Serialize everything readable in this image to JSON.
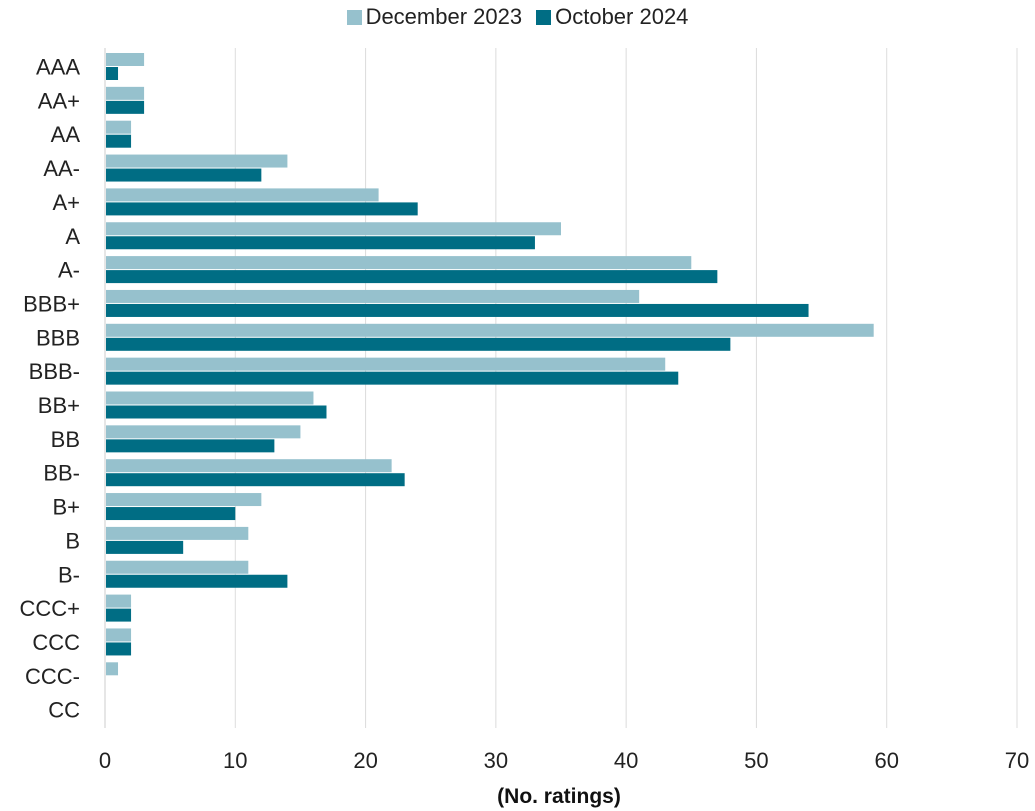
{
  "chart_data": {
    "type": "bar",
    "orientation": "horizontal",
    "categories": [
      "AAA",
      "AA+",
      "AA",
      "AA-",
      "A+",
      "A",
      "A-",
      "BBB+",
      "BBB",
      "BBB-",
      "BB+",
      "BB",
      "BB-",
      "B+",
      "B",
      "B-",
      "CCC+",
      "CCC",
      "CCC-",
      "CC"
    ],
    "series": [
      {
        "name": "December 2023",
        "color": "#96c1cd",
        "values": [
          3,
          3,
          2,
          14,
          21,
          35,
          45,
          41,
          59,
          43,
          16,
          15,
          22,
          12,
          11,
          11,
          2,
          2,
          1,
          0
        ]
      },
      {
        "name": "October 2024",
        "color": "#006d84",
        "values": [
          1,
          3,
          2,
          12,
          24,
          33,
          47,
          54,
          48,
          44,
          17,
          13,
          23,
          10,
          6,
          14,
          2,
          2,
          0,
          0
        ]
      }
    ],
    "xlim": [
      0,
      70
    ],
    "xticks": [
      "0",
      "10",
      "20",
      "30",
      "40",
      "50",
      "60",
      "70"
    ],
    "xlabel": "(No. ratings)",
    "ylabel": "",
    "title": "",
    "grid": "vertical",
    "legend": "top-center"
  }
}
